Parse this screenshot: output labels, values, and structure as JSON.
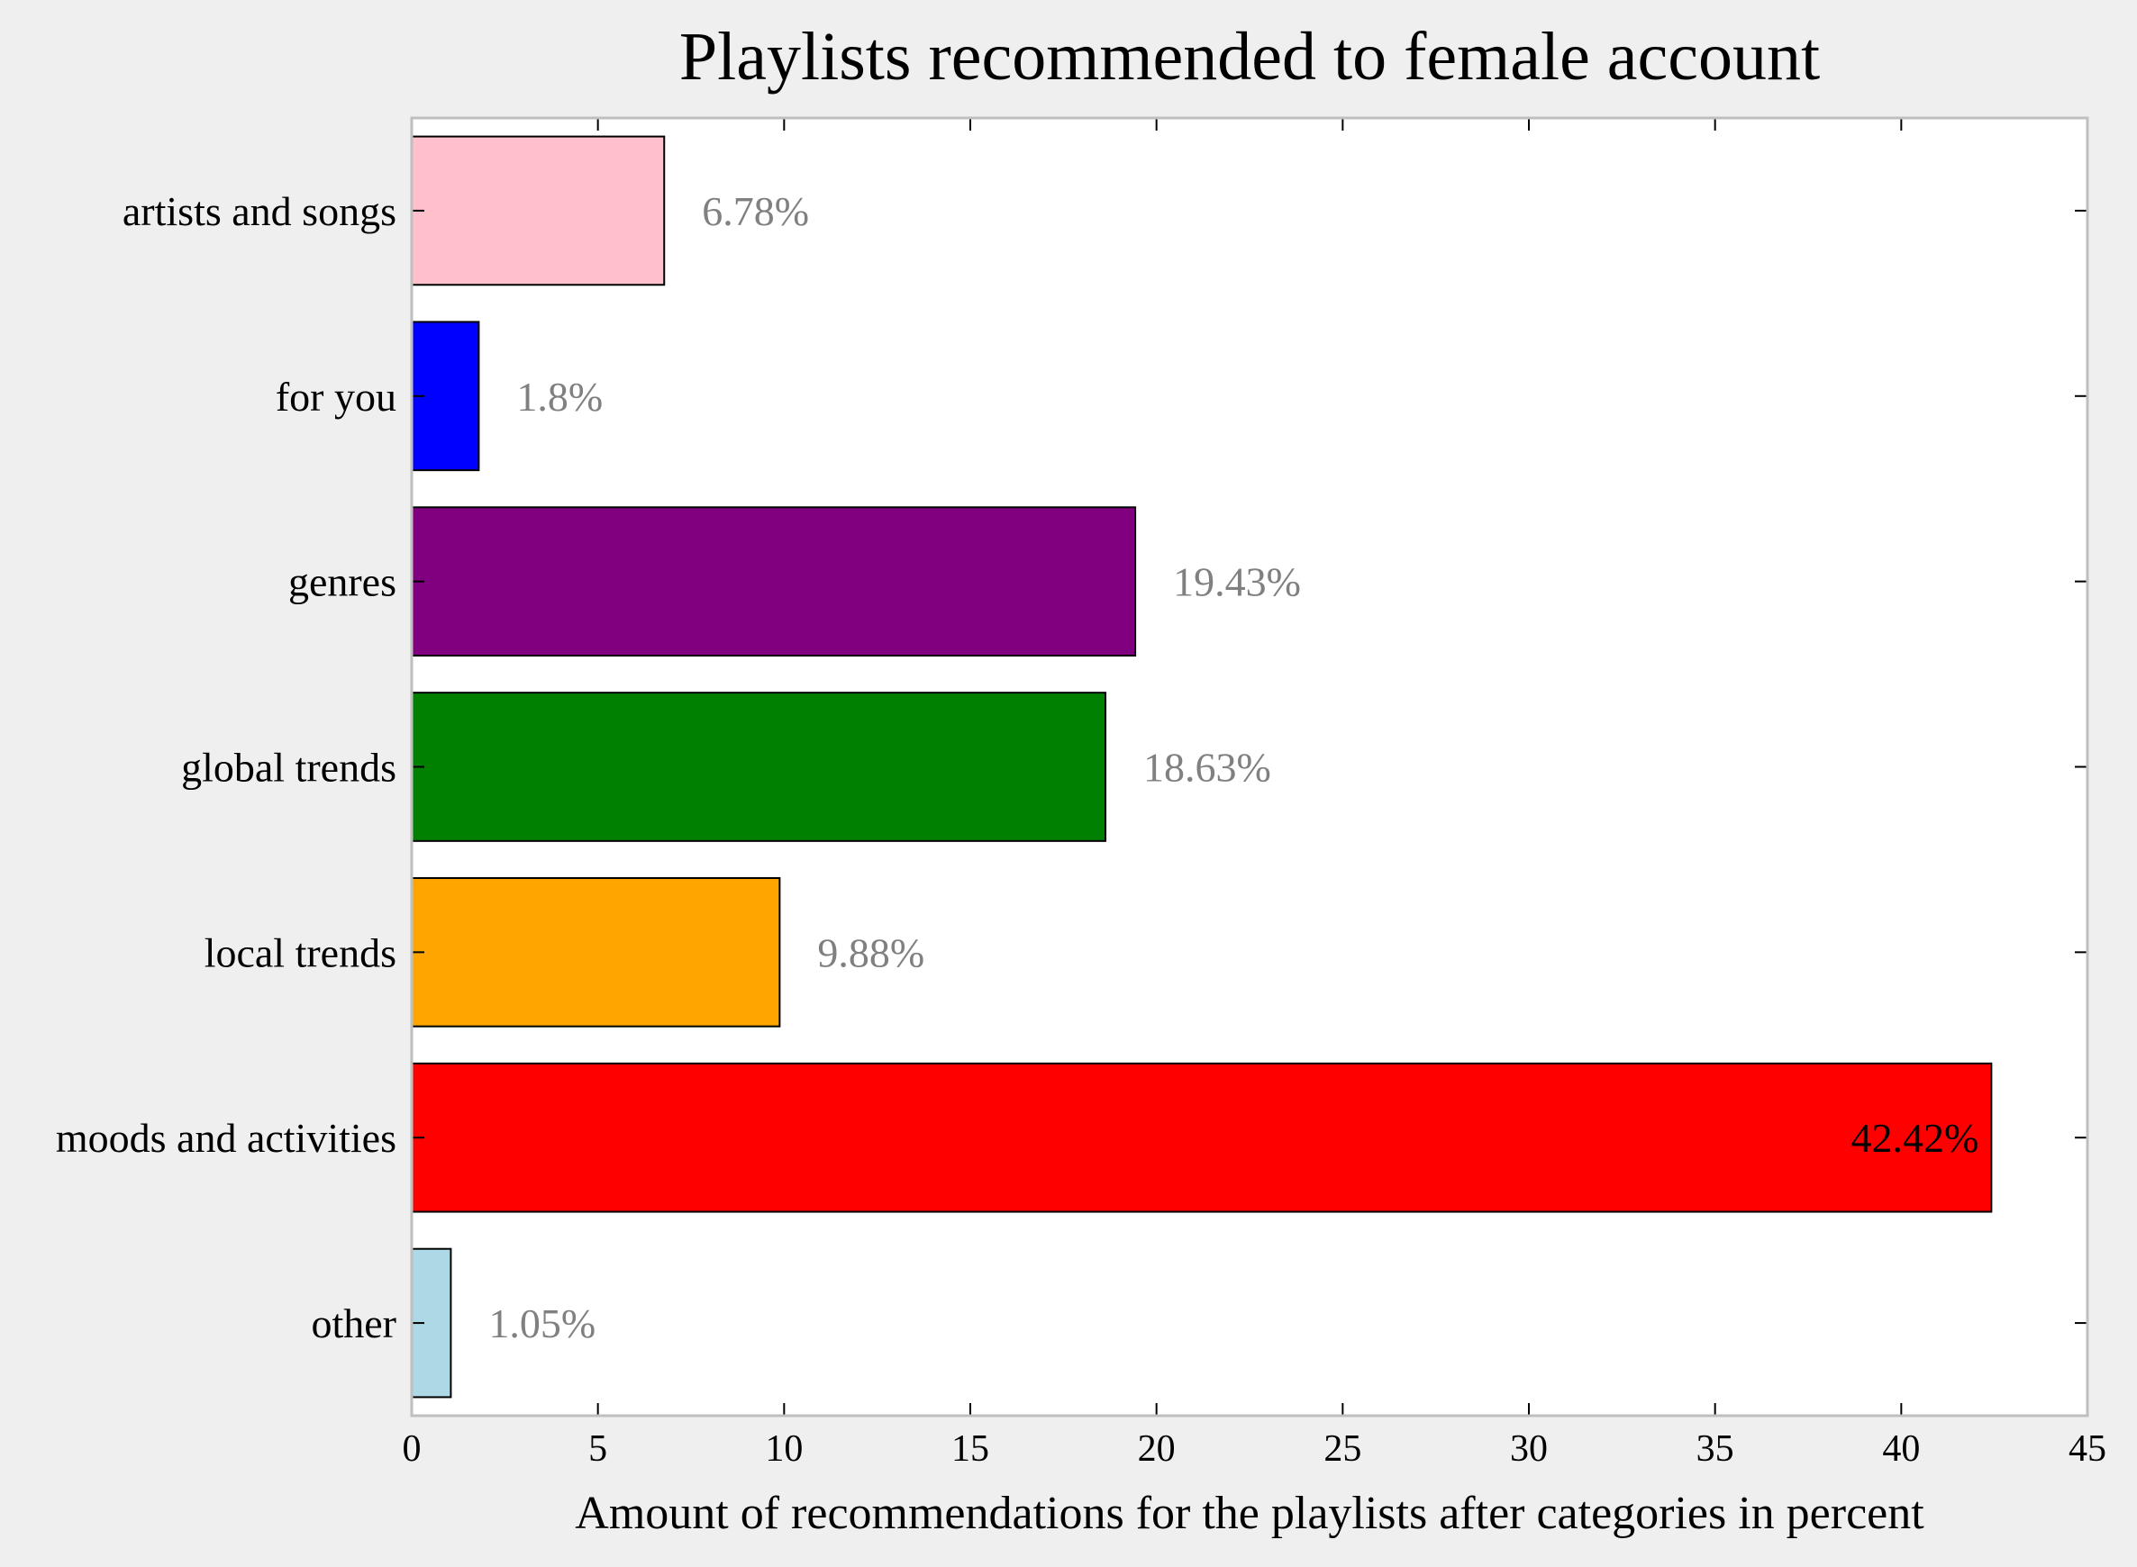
{
  "chart_data": {
    "type": "bar",
    "orientation": "horizontal",
    "title": "Playlists recommended to female account",
    "xlabel": "Amount of recommendations for the playlists after categories in percent",
    "ylabel": "",
    "xlim": [
      0,
      45
    ],
    "xticks": [
      0,
      5,
      10,
      15,
      20,
      25,
      30,
      35,
      40,
      45
    ],
    "grid": false,
    "categories": [
      "artists and songs",
      "for you",
      "genres",
      "global trends",
      "local trends",
      "moods and activities",
      "other"
    ],
    "values": [
      6.78,
      1.8,
      19.43,
      18.63,
      9.88,
      42.42,
      1.05
    ],
    "data_labels": [
      "6.78%",
      "1.8%",
      "19.43%",
      "18.63%",
      "9.88%",
      "42.42%",
      "1.05%"
    ],
    "colors": [
      "#ffc0cb",
      "#0000ff",
      "#800080",
      "#008000",
      "#ffa500",
      "#ff0000",
      "#add8e6"
    ]
  }
}
